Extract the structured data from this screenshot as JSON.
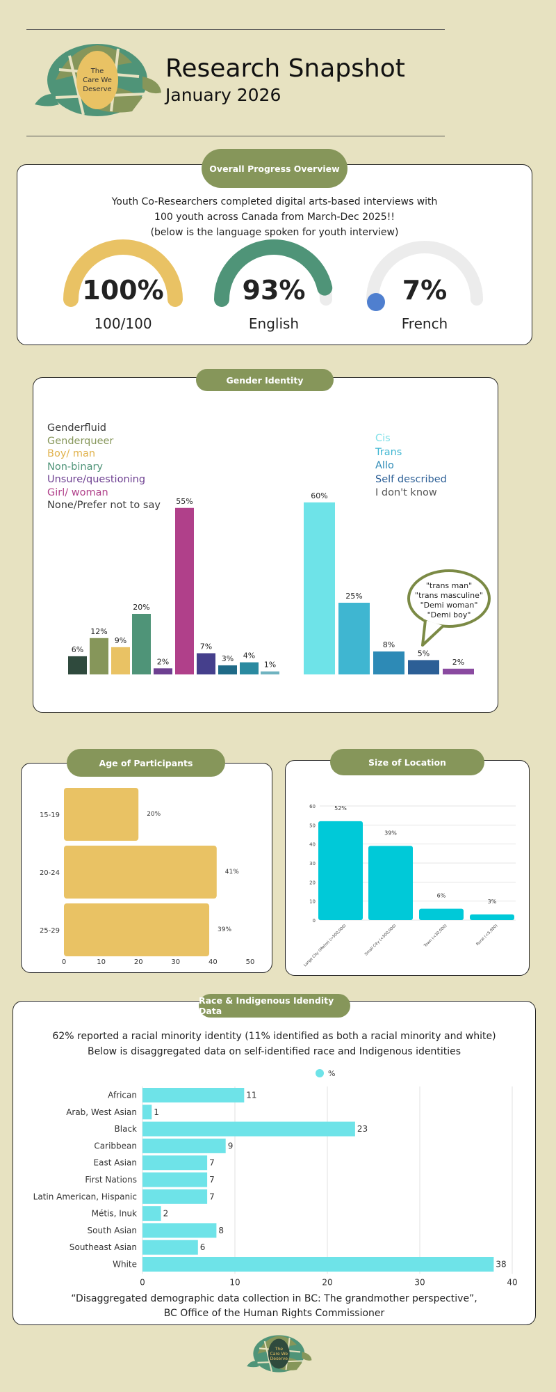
{
  "header": {
    "logo_text": "The Care We Deserve",
    "title": "Research Snapshot",
    "subtitle": "January 2026"
  },
  "progress": {
    "pill": "Overall Progress Overview",
    "intro_line1": "Youth Co-Researchers completed digital arts-based interviews with",
    "intro_line2": "100 youth across Canada from March-Dec 2025!!",
    "intro_line3": "(below is the language spoken for youth interview)",
    "gauges": [
      {
        "value": "100%",
        "label": "100/100",
        "fraction": 1.0,
        "color": "#e9c264"
      },
      {
        "value": "93%",
        "label": "English",
        "fraction": 0.93,
        "color": "#4f9478"
      },
      {
        "value": "7%",
        "label": "French",
        "fraction": 0.07,
        "color": "#4f7fcf"
      }
    ]
  },
  "gender": {
    "pill": "Gender Identity",
    "legend_left": [
      {
        "label": "Genderfluid",
        "color": "#3a3a3a"
      },
      {
        "label": "Genderqueer",
        "color": "#86965a"
      },
      {
        "label": "Boy/ man",
        "color": "#e9c264"
      },
      {
        "label": "Non-binary",
        "color": "#4f9478"
      },
      {
        "label": "Unsure/questioning",
        "color": "#6d3f91"
      },
      {
        "label": "Girl/ woman",
        "color": "#b0408a"
      },
      {
        "label": "None/Prefer not to say",
        "color": "#3a3a3a"
      }
    ],
    "legend_right": [
      {
        "label": "Cis",
        "color": "#7fe0e8"
      },
      {
        "label": "Trans",
        "color": "#3fb6d1"
      },
      {
        "label": "Allo",
        "color": "#2d8ab6"
      },
      {
        "label": "Self described",
        "color": "#2c5f96"
      },
      {
        "label": "I don't know",
        "color": "#555555"
      }
    ],
    "bubble": [
      "\"trans man\"",
      "\"trans masculine\"",
      "\"Demi woman\"",
      "\"Demi boy\""
    ]
  },
  "age": {
    "pill": "Age of Participants"
  },
  "location": {
    "pill": "Size of Location"
  },
  "race": {
    "pill": "Race & Indigenous Idendity Data",
    "line1": "62% reported a racial minority identity (11% identified as both a racial minority and white)",
    "line2": "Below is disaggregated data on self-identified race and Indigenous identities",
    "source_line1": "“Disaggregated demographic data collection in BC: The grandmother perspective”,",
    "source_line2": "BC Office of the Human Rights Commissioner"
  },
  "footer": {
    "logo_text": "The Care We Deserve"
  },
  "chart_data": [
    {
      "type": "bar",
      "id": "gender-identity",
      "categories": [
        "",
        "",
        "",
        "",
        "",
        "",
        "",
        "",
        "",
        ""
      ],
      "values": [
        6,
        12,
        9,
        20,
        2,
        55,
        7,
        3,
        4,
        1
      ],
      "value_labels": [
        "6%",
        "12%",
        "9%",
        "20%",
        "2%",
        "55%",
        "7%",
        "3%",
        "4%",
        "1%"
      ],
      "colors": [
        "#2f4a3d",
        "#86965a",
        "#e9c264",
        "#4f9478",
        "#6d3f91",
        "#b0408a",
        "#453f8c",
        "#1f6a87",
        "#2a8aa0",
        "#6fb3c0"
      ]
    },
    {
      "type": "bar",
      "id": "cis-trans",
      "categories": [
        "",
        "",
        "",
        "",
        ""
      ],
      "values": [
        60,
        25,
        8,
        5,
        2
      ],
      "value_labels": [
        "60%",
        "25%",
        "8%",
        "5%",
        "2%"
      ],
      "colors": [
        "#6ee3e8",
        "#3fb6d1",
        "#2d8ab6",
        "#2c5f96",
        "#8a4aa0"
      ]
    },
    {
      "type": "bar",
      "id": "age",
      "orientation": "horizontal",
      "categories": [
        "15-19",
        "20-24",
        "25-29"
      ],
      "values": [
        20,
        41,
        39
      ],
      "value_labels": [
        "20%",
        "41%",
        "39%"
      ],
      "xlim": [
        0,
        50
      ],
      "xticks": [
        "0",
        "10",
        "20",
        "30",
        "40",
        "50"
      ],
      "color": "#e9c264"
    },
    {
      "type": "bar",
      "id": "location",
      "categories": [
        "Large City (Metro) (>500,000)",
        "Small City (<500,000)",
        "Town (<30,000)",
        "Rural (<5,000)"
      ],
      "values": [
        52,
        39,
        6,
        3
      ],
      "value_labels": [
        "52%",
        "39%",
        "6%",
        "3%"
      ],
      "ylim": [
        0,
        60
      ],
      "yticks": [
        "0",
        "10",
        "20",
        "30",
        "40",
        "50",
        "60"
      ],
      "color": "#00c9d8"
    },
    {
      "type": "bar",
      "id": "race",
      "orientation": "horizontal",
      "legend": "%",
      "categories": [
        "African",
        "Arab, West Asian",
        "Black",
        "Caribbean",
        "East Asian",
        "First Nations",
        "Latin American, Hispanic",
        "Métis, Inuk",
        "South Asian",
        "Southeast Asian",
        "White"
      ],
      "values": [
        11,
        1,
        23,
        9,
        7,
        7,
        7,
        2,
        8,
        6,
        38
      ],
      "xlim": [
        0,
        40
      ],
      "xticks": [
        "0",
        "10",
        "20",
        "30",
        "40"
      ],
      "color": "#6ee3e8"
    }
  ]
}
